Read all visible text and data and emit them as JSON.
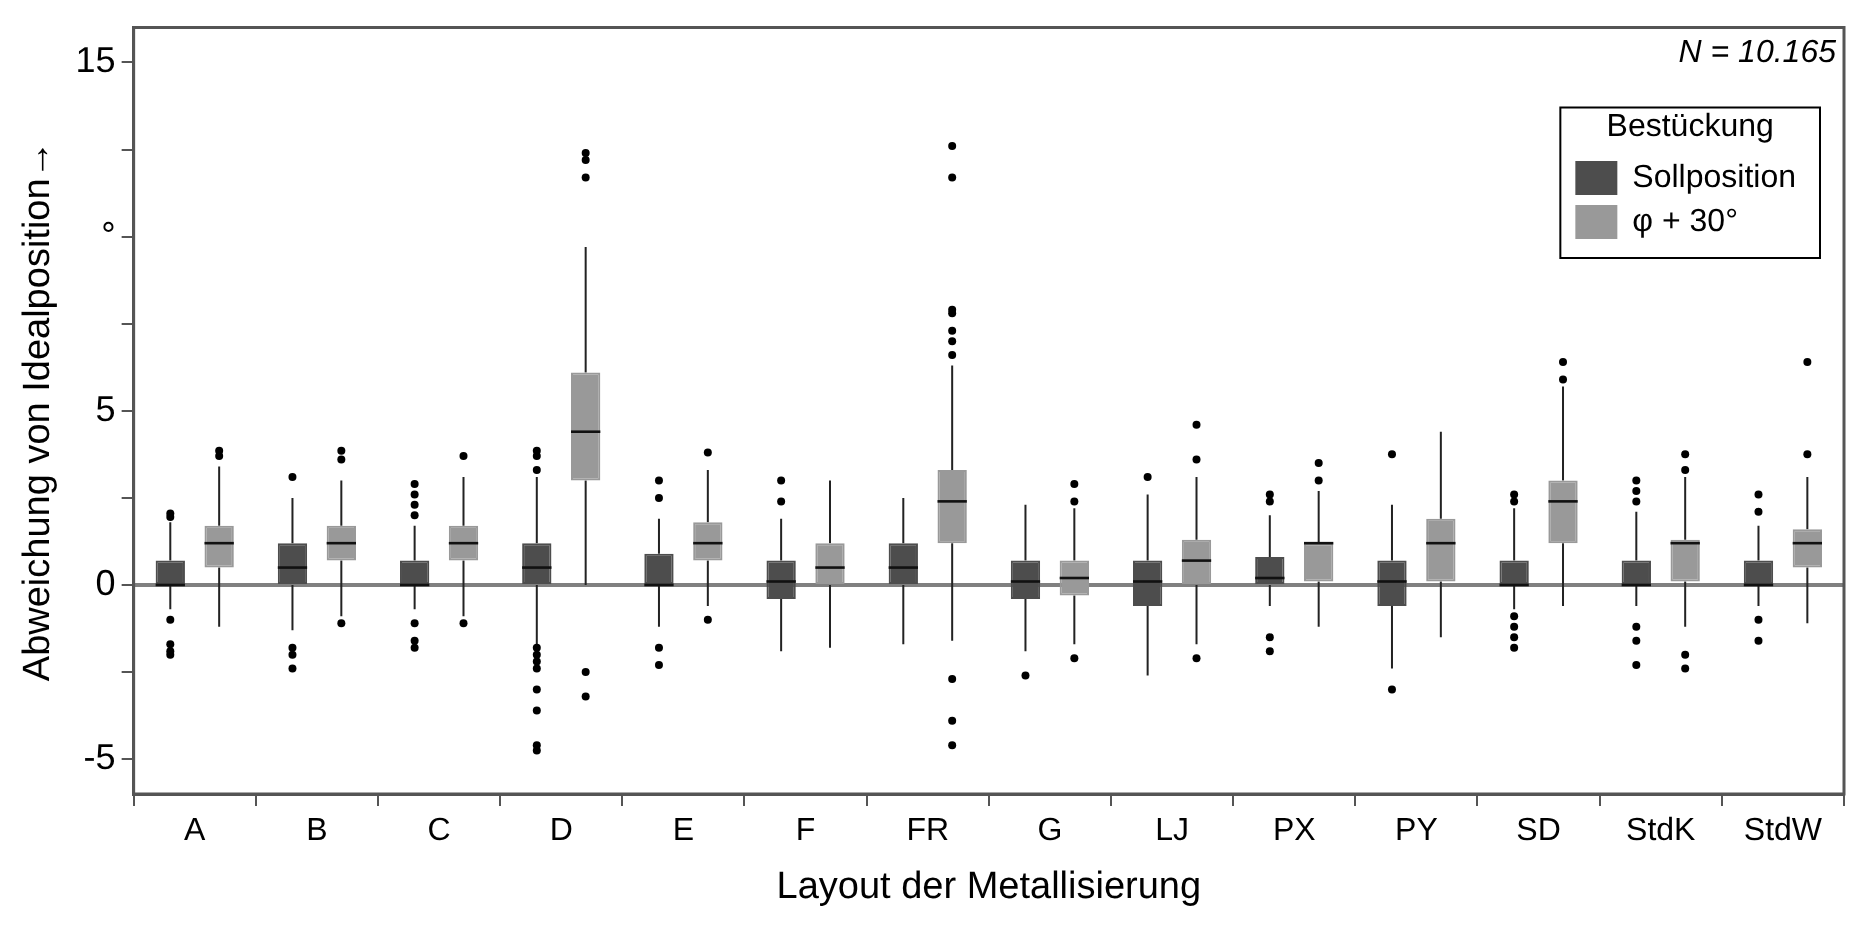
{
  "chart_data": {
    "type": "box",
    "xlabel": "Layout der Metallisierung",
    "ylabel": "Abweichung von Idealposition→",
    "categories": [
      "A",
      "B",
      "C",
      "D",
      "E",
      "F",
      "FR",
      "G",
      "LJ",
      "PX",
      "PY",
      "SD",
      "StdK",
      "StdW"
    ],
    "ylim": [
      -6,
      16
    ],
    "yticks": [
      {
        "value": -5,
        "label": "-5"
      },
      {
        "value": -2.5,
        "label": null
      },
      {
        "value": 0,
        "label": "0"
      },
      {
        "value": 2.5,
        "label": null
      },
      {
        "value": 5,
        "label": "5"
      },
      {
        "value": 7.5,
        "label": null
      },
      {
        "value": 10,
        "label": "°"
      },
      {
        "value": 12.5,
        "label": null
      },
      {
        "value": 15,
        "label": "15"
      }
    ],
    "grid": false,
    "legend": "top right",
    "legend_title": "Bestückung",
    "annotations": [
      "N = 10.165"
    ],
    "ref_lines": [
      {
        "axis": "y",
        "value": 0,
        "color": "#808080"
      }
    ],
    "series": [
      {
        "name": "Sollposition",
        "color": "#4d4d4d",
        "boxes": [
          {
            "low": -0.7,
            "q1": 0,
            "median": 0,
            "q3": 0.7,
            "high": 1.8,
            "outliers": [
              1.95,
              2.05,
              -1.0,
              -1.7,
              -1.9,
              -2.0
            ]
          },
          {
            "low": -1.3,
            "q1": 0,
            "median": 0.5,
            "q3": 1.2,
            "high": 2.5,
            "outliers": [
              3.1,
              -1.8,
              -2.0,
              -2.4
            ]
          },
          {
            "low": -0.7,
            "q1": 0,
            "median": 0,
            "q3": 0.7,
            "high": 1.7,
            "outliers": [
              2.0,
              2.3,
              2.6,
              2.9,
              -1.1,
              -1.6,
              -1.8
            ]
          },
          {
            "low": -1.7,
            "q1": 0,
            "median": 0.5,
            "q3": 1.2,
            "high": 3.1,
            "outliers": [
              3.3,
              3.7,
              3.85,
              -1.8,
              -2.0,
              -2.2,
              -2.4,
              -3.0,
              -3.6,
              -4.6,
              -4.75
            ]
          },
          {
            "low": -1.2,
            "q1": 0,
            "median": 0,
            "q3": 0.9,
            "high": 1.9,
            "outliers": [
              2.5,
              3.0,
              -1.8,
              -2.3
            ]
          },
          {
            "low": -1.9,
            "q1": -0.4,
            "median": 0.1,
            "q3": 0.7,
            "high": 1.9,
            "outliers": [
              2.4,
              3.0
            ]
          },
          {
            "low": -1.7,
            "q1": 0,
            "median": 0.5,
            "q3": 1.2,
            "high": 2.5
          },
          {
            "low": -1.9,
            "q1": -0.4,
            "median": 0.1,
            "q3": 0.7,
            "high": 2.3,
            "outliers": [
              -2.6
            ]
          },
          {
            "low": -2.6,
            "q1": -0.6,
            "median": 0.1,
            "q3": 0.7,
            "high": 2.6,
            "outliers": [
              3.1
            ]
          },
          {
            "low": -0.6,
            "q1": 0,
            "median": 0.2,
            "q3": 0.8,
            "high": 2.0,
            "outliers": [
              2.4,
              2.6,
              -1.5,
              -1.9
            ]
          },
          {
            "low": -2.4,
            "q1": -0.6,
            "median": 0.1,
            "q3": 0.7,
            "high": 2.3,
            "outliers": [
              3.75,
              -3.0
            ]
          },
          {
            "low": -0.7,
            "q1": 0,
            "median": 0,
            "q3": 0.7,
            "high": 2.2,
            "outliers": [
              2.4,
              2.6,
              -0.9,
              -1.2,
              -1.5,
              -1.8
            ]
          },
          {
            "low": -0.6,
            "q1": 0,
            "median": 0,
            "q3": 0.7,
            "high": 2.1,
            "outliers": [
              2.4,
              2.7,
              3.0,
              -1.2,
              -1.6,
              -2.3
            ]
          },
          {
            "low": -0.6,
            "q1": 0,
            "median": 0,
            "q3": 0.7,
            "high": 1.7,
            "outliers": [
              2.1,
              2.6,
              -1.0,
              -1.6
            ]
          }
        ]
      },
      {
        "name": "φ + 30°",
        "color": "#999999",
        "boxes": [
          {
            "low": -1.2,
            "q1": 0.5,
            "median": 1.2,
            "q3": 1.7,
            "high": 3.4,
            "outliers": [
              3.7,
              3.85
            ]
          },
          {
            "low": -0.9,
            "q1": 0.7,
            "median": 1.2,
            "q3": 1.7,
            "high": 3.0,
            "outliers": [
              3.6,
              3.85,
              -1.1
            ]
          },
          {
            "low": -0.9,
            "q1": 0.7,
            "median": 1.2,
            "q3": 1.7,
            "high": 3.1,
            "outliers": [
              3.7,
              -1.1
            ]
          },
          {
            "low": 0,
            "q1": 3.0,
            "median": 4.4,
            "q3": 6.1,
            "high": 9.7,
            "outliers": [
              11.7,
              12.2,
              12.4,
              -2.5,
              -3.2
            ]
          },
          {
            "low": -0.6,
            "q1": 0.7,
            "median": 1.2,
            "q3": 1.8,
            "high": 3.3,
            "outliers": [
              3.8,
              -1.0
            ]
          },
          {
            "low": -1.8,
            "q1": 0,
            "median": 0.5,
            "q3": 1.2,
            "high": 3.0
          },
          {
            "low": -1.6,
            "q1": 1.2,
            "median": 2.4,
            "q3": 3.3,
            "high": 6.3,
            "outliers": [
              6.6,
              7.0,
              7.3,
              7.8,
              7.9,
              11.7,
              12.6,
              -2.7,
              -3.9,
              -4.6
            ]
          },
          {
            "low": -1.7,
            "q1": -0.3,
            "median": 0.2,
            "q3": 0.7,
            "high": 2.2,
            "outliers": [
              2.4,
              2.9,
              -2.1
            ]
          },
          {
            "low": -1.7,
            "q1": 0,
            "median": 0.7,
            "q3": 1.3,
            "high": 3.1,
            "outliers": [
              3.6,
              4.6,
              -2.1
            ]
          },
          {
            "low": -1.2,
            "q1": 0.1,
            "median": 1.2,
            "q3": 1.2,
            "high": 2.7,
            "outliers": [
              3.0,
              3.5
            ]
          },
          {
            "low": -1.5,
            "q1": 0.1,
            "median": 1.2,
            "q3": 1.9,
            "high": 4.4
          },
          {
            "low": -0.6,
            "q1": 1.2,
            "median": 2.4,
            "q3": 3.0,
            "high": 5.7,
            "outliers": [
              5.9,
              6.4
            ]
          },
          {
            "low": -1.2,
            "q1": 0.1,
            "median": 1.2,
            "q3": 1.3,
            "high": 3.1,
            "outliers": [
              3.3,
              3.75,
              -2.0,
              -2.4
            ]
          },
          {
            "low": -1.1,
            "q1": 0.5,
            "median": 1.2,
            "q3": 1.6,
            "high": 3.1,
            "outliers": [
              3.75,
              6.4
            ]
          }
        ]
      }
    ]
  }
}
